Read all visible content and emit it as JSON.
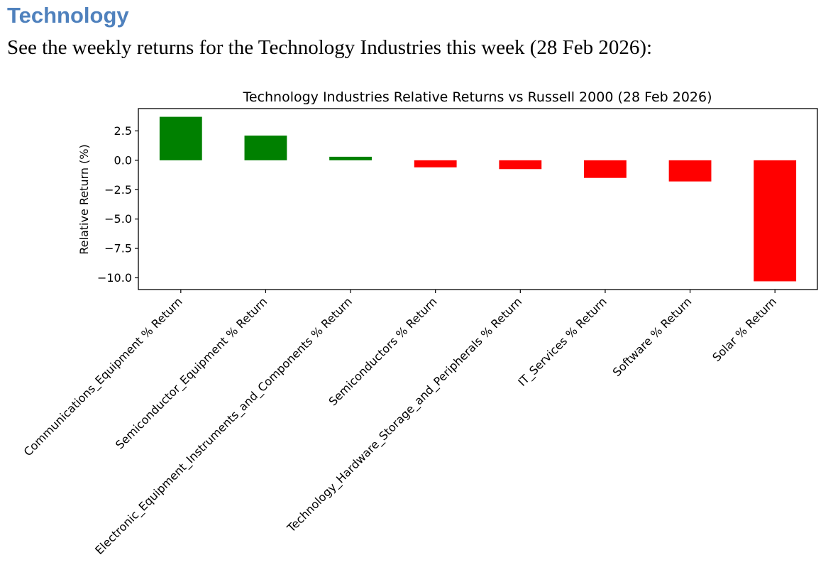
{
  "heading": "Technology",
  "intro": "See the weekly returns for the Technology Industries this week (28 Feb 2026):",
  "colors": {
    "heading": "#4f81bd",
    "positive": "#008000",
    "negative": "#ff0000"
  },
  "chart_data": {
    "type": "bar",
    "title": "Technology Industries Relative Returns vs Russell 2000 (28 Feb 2026)",
    "xlabel": "",
    "ylabel": "Relative Return (%)",
    "ylim": [
      -11.0,
      4.4
    ],
    "yticks": [
      2.5,
      0.0,
      -2.5,
      -5.0,
      -7.5,
      -10.0
    ],
    "ytick_labels": [
      "2.5",
      "0.0",
      "−2.5",
      "−5.0",
      "−7.5",
      "−10.0"
    ],
    "grid": false,
    "categories": [
      "Communications_Equipment % Return",
      "Semiconductor_Equipment % Return",
      "Electronic_Equipment_Instruments_and_Components % Return",
      "Semiconductors % Return",
      "Technology_Hardware_Storage_and_Peripherals % Return",
      "IT_Services % Return",
      "Software % Return",
      "Solar % Return"
    ],
    "values": [
      3.7,
      2.1,
      0.3,
      -0.6,
      -0.75,
      -1.5,
      -1.8,
      -10.3
    ]
  }
}
